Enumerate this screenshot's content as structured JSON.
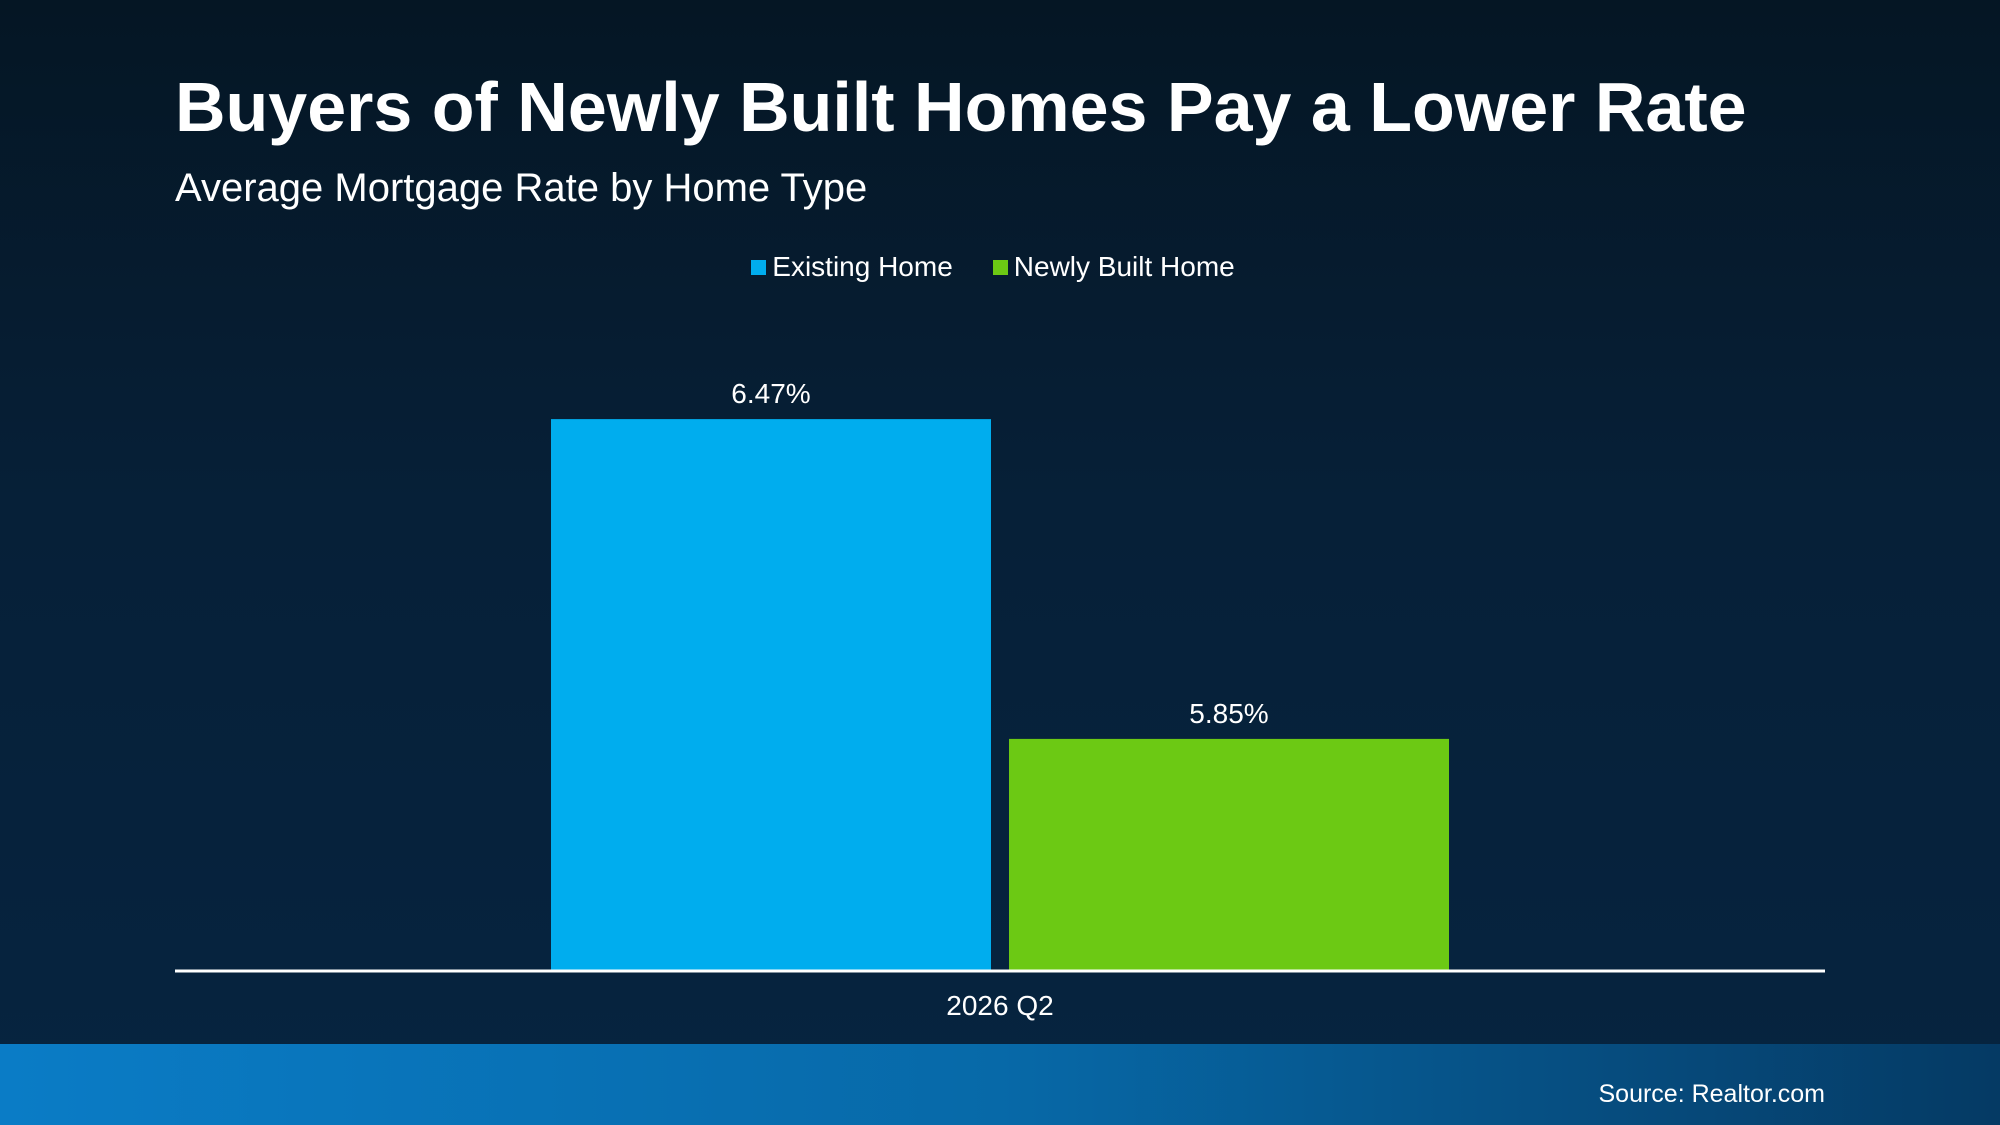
{
  "colors": {
    "existing": "#00adee",
    "newly_built": "#6cc914",
    "axis_line": "#ffffff",
    "text": "#ffffff"
  },
  "chart_data": {
    "type": "bar",
    "title": "Buyers of Newly Built Homes Pay a Lower Rate",
    "subtitle": "Average Mortgage Rate by Home Type",
    "categories": [
      "2026 Q2"
    ],
    "series": [
      {
        "name": "Existing Home",
        "values": [
          6.47
        ],
        "label": "6.47%",
        "color": "#00adee"
      },
      {
        "name": "Newly Built Home",
        "values": [
          5.85
        ],
        "label": "5.85%",
        "color": "#6cc914"
      }
    ],
    "xlabel": "",
    "ylabel": "",
    "ylim": [
      5.4,
      6.54
    ],
    "grid": false,
    "legend_position": "top-center"
  },
  "footer": {
    "source": "Source: Realtor.com"
  }
}
